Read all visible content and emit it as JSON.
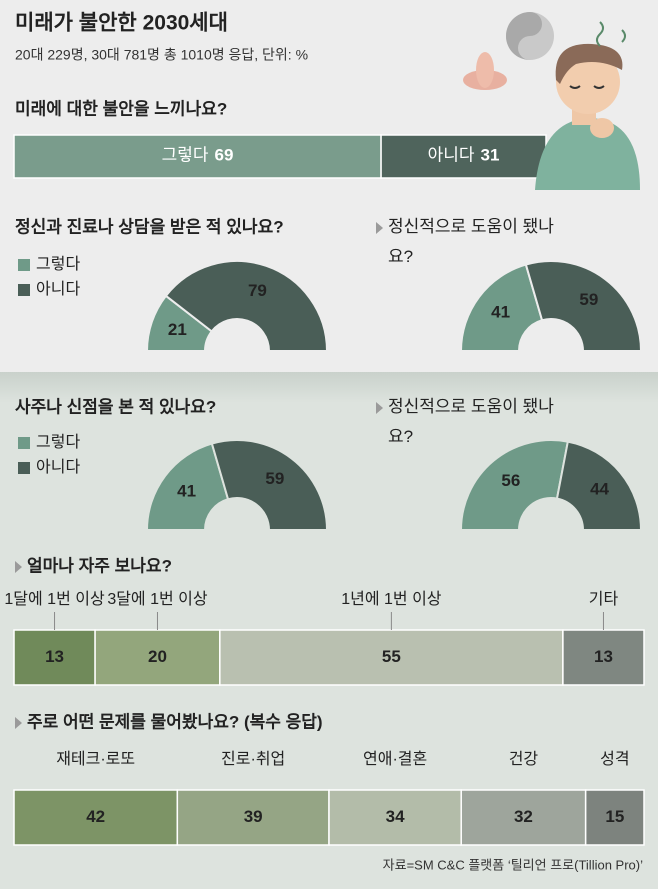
{
  "header": {
    "title": "미래가 불안한 2030세대",
    "subtitle": "20대 229명, 30대 781명 총 1010명 응답, 단위: %"
  },
  "source": "자료=SM C&C 플랫폼 ‘틸리언 프로(Tillion Pro)’",
  "chart_data": [
    {
      "type": "bar",
      "title": "미래에 대한 불안을 느끼나요?",
      "categories": [
        "그렇다",
        "아니다"
      ],
      "values": [
        69,
        31
      ],
      "colors": [
        "#7a9c8c",
        "#4f645c"
      ]
    },
    {
      "type": "pie",
      "semicircle": true,
      "title": "정신과 진료나 상담을 받은 적 있나요?",
      "categories": [
        "그렇다",
        "아니다"
      ],
      "values": [
        21,
        79
      ],
      "colors": [
        "#6f9a88",
        "#4a5e57"
      ],
      "legend": "top-left"
    },
    {
      "type": "pie",
      "semicircle": true,
      "title": "정신적으로 도움이 됐나요?",
      "values": [
        41,
        59
      ],
      "colors": [
        "#6f9a88",
        "#4a5e57"
      ]
    },
    {
      "type": "pie",
      "semicircle": true,
      "title": "사주나 신점을 본 적 있나요?",
      "categories": [
        "그렇다",
        "아니다"
      ],
      "values": [
        41,
        59
      ],
      "colors": [
        "#6f9a88",
        "#4a5e57"
      ],
      "legend": "top-left"
    },
    {
      "type": "pie",
      "semicircle": true,
      "title": "정신적으로 도움이 됐나요?",
      "values": [
        56,
        44
      ],
      "colors": [
        "#6f9a88",
        "#4a5e57"
      ]
    },
    {
      "type": "bar",
      "title": "얼마나 자주 보나요?",
      "categories": [
        "1달에 1번 이상",
        "3달에 1번 이상",
        "1년에 1번 이상",
        "기타"
      ],
      "values": [
        13,
        20,
        55,
        13
      ],
      "colors": [
        "#708a5a",
        "#93a67c",
        "#b9c0b0",
        "#7f8781"
      ]
    },
    {
      "type": "bar",
      "title": "주로 어떤 문제를 물어봤나요? (복수 응답)",
      "categories": [
        "재테크·로또",
        "진로·취업",
        "연애·결혼",
        "건강",
        "성격"
      ],
      "values": [
        42,
        39,
        34,
        32,
        15
      ],
      "colors": [
        "#7d9466",
        "#95a585",
        "#b3bca9",
        "#9ea59c",
        "#7d837e"
      ]
    }
  ]
}
